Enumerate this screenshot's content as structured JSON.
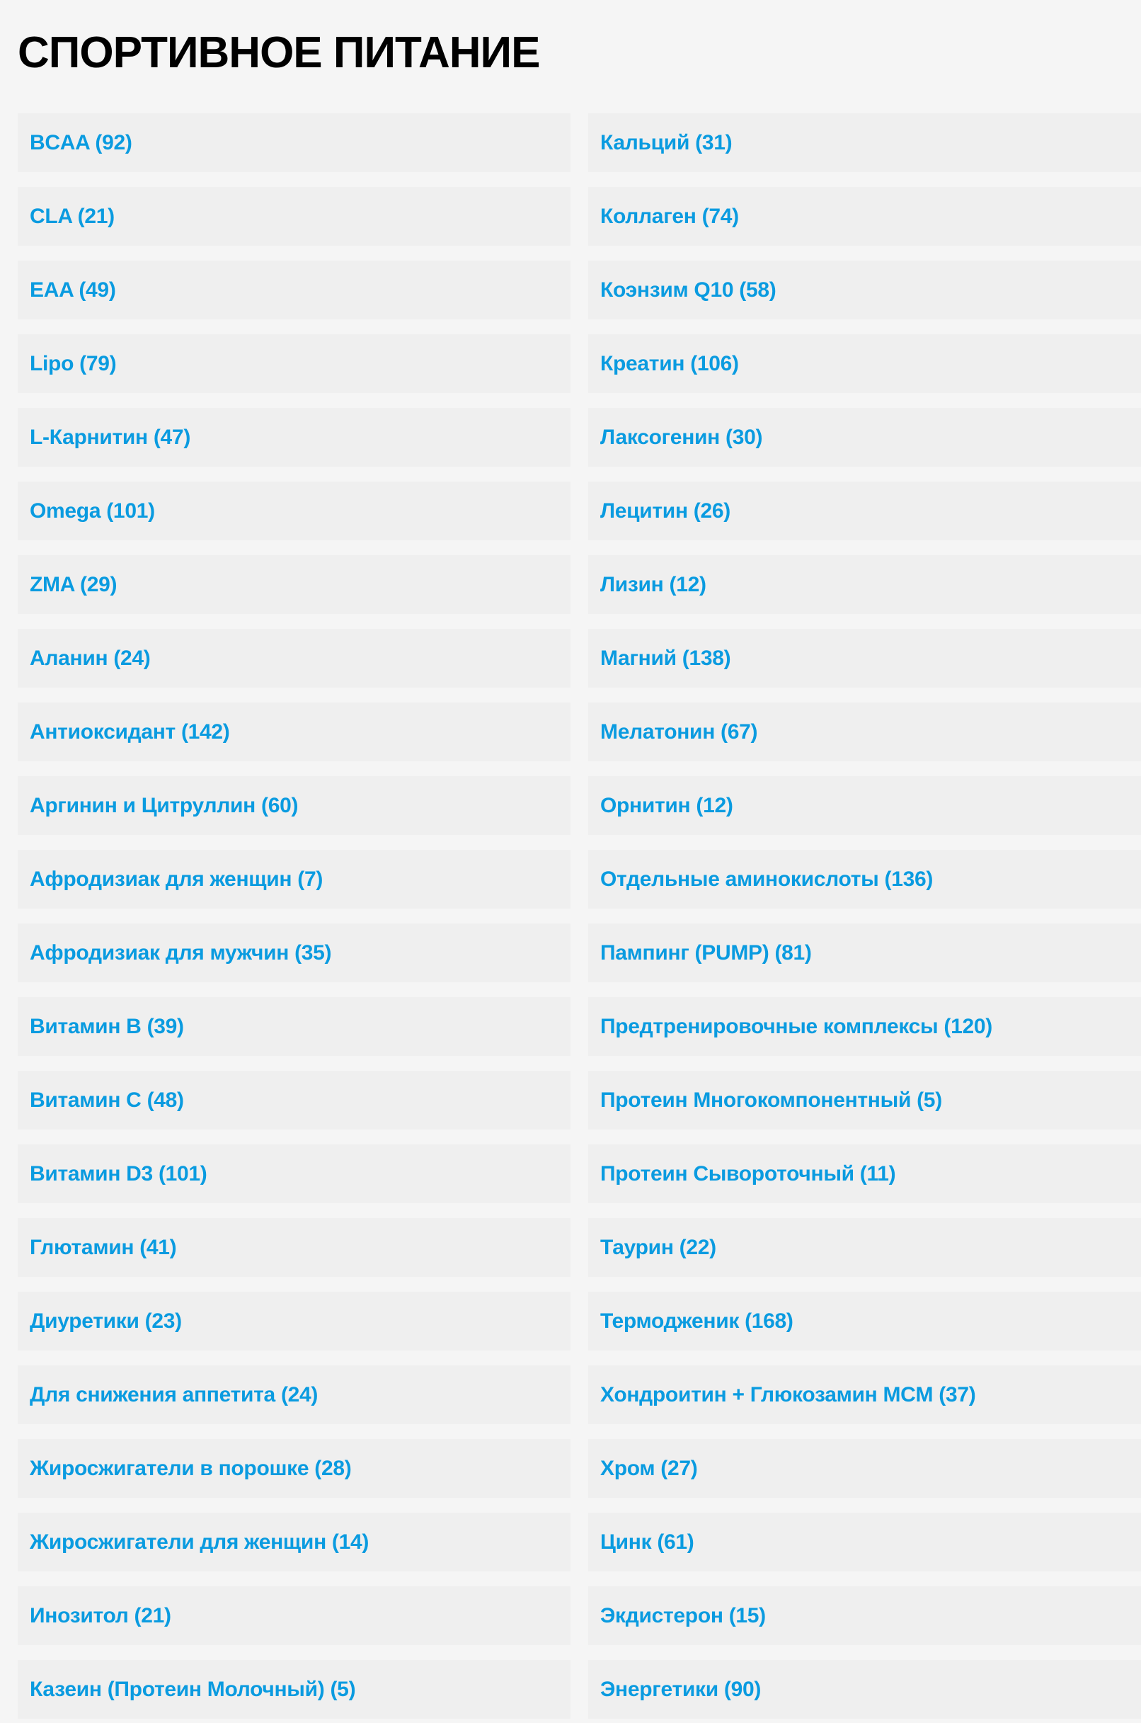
{
  "page_title": "СПОРТИВНОЕ ПИТАНИЕ",
  "link_color": "#0a9be0",
  "categories": [
    "BCAA (92)",
    "CLA (21)",
    "EAA (49)",
    "Lipo (79)",
    "L-Карнитин (47)",
    "Omega (101)",
    "ZMA (29)",
    "Аланин (24)",
    "Антиоксидант (142)",
    "Аргинин и Цитруллин (60)",
    "Афродизиак для женщин (7)",
    "Афродизиак для мужчин (35)",
    "Витамин B (39)",
    "Витамин C (48)",
    "Витамин D3 (101)",
    "Глютамин (41)",
    "Диуретики (23)",
    "Для снижения аппетита (24)",
    "Жиросжигатели в порошке (28)",
    "Жиросжигатели для женщин (14)",
    "Инозитол (21)",
    "Казеин (Протеин Молочный) (5)",
    "Кальций (31)",
    "Коллаген (74)",
    "Коэнзим Q10 (58)",
    "Креатин (106)",
    "Лаксогенин (30)",
    "Лецитин (26)",
    "Лизин (12)",
    "Магний (138)",
    "Мелатонин (67)",
    "Орнитин (12)",
    "Отдельные аминокислоты (136)",
    "Пампинг (PUMP) (81)",
    "Предтренировочные комплексы (120)",
    "Протеин Многокомпонентный (5)",
    "Протеин Сывороточный (11)",
    "Таурин (22)",
    "Термодженик (168)",
    "Хондроитин + Глюкозамин MCM (37)",
    "Хром (27)",
    "Цинк (61)",
    "Экдистерон (15)",
    "Энергетики (90)"
  ]
}
